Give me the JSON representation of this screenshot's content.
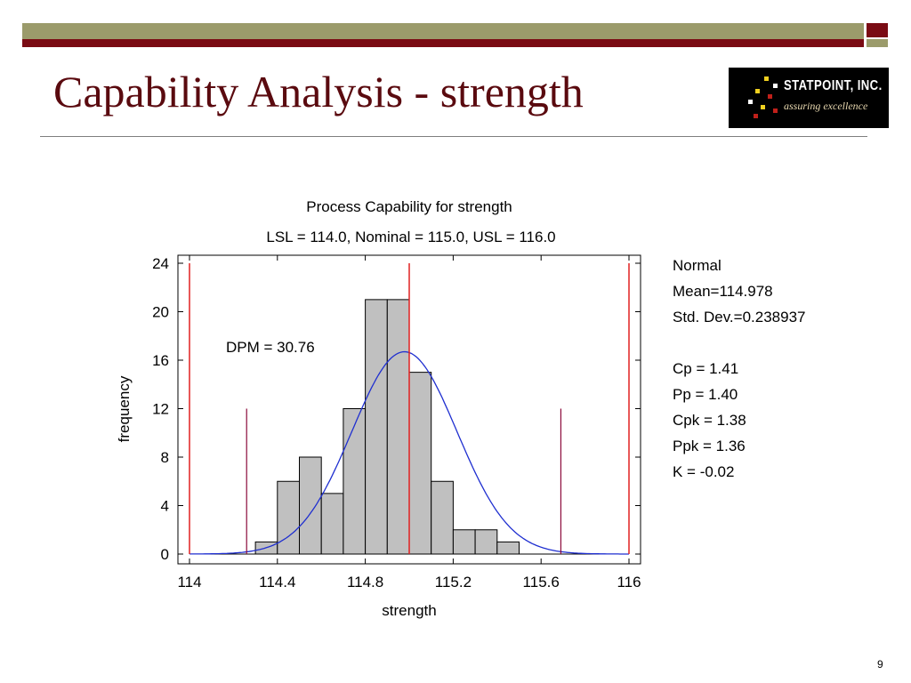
{
  "slide": {
    "title": "Capability Analysis - strength",
    "page_number": "9",
    "logo": {
      "name": "STATPOINT, INC.",
      "tagline": "assuring excellence"
    },
    "colors": {
      "title": "#5a0a0f",
      "band_olive": "#9b9b6b",
      "band_red": "#7a0b14"
    }
  },
  "chart_data": {
    "type": "bar",
    "title": "Process Capability for strength",
    "subtitle": "LSL = 114.0, Nominal = 115.0, USL = 116.0",
    "xlabel": "strength",
    "ylabel": "frequency",
    "xlim": [
      114,
      116
    ],
    "ylim": [
      0,
      24
    ],
    "x_ticks": [
      "114",
      "114.4",
      "114.8",
      "115.2",
      "115.6",
      "116"
    ],
    "y_ticks": [
      "0",
      "4",
      "8",
      "12",
      "16",
      "20",
      "24"
    ],
    "bin_width": 0.1,
    "bins": [
      {
        "x0": 114.3,
        "x1": 114.4,
        "count": 1
      },
      {
        "x0": 114.4,
        "x1": 114.5,
        "count": 6
      },
      {
        "x0": 114.5,
        "x1": 114.6,
        "count": 8
      },
      {
        "x0": 114.6,
        "x1": 114.7,
        "count": 5
      },
      {
        "x0": 114.7,
        "x1": 114.8,
        "count": 12
      },
      {
        "x0": 114.8,
        "x1": 114.9,
        "count": 21
      },
      {
        "x0": 114.9,
        "x1": 115.0,
        "count": 21
      },
      {
        "x0": 115.0,
        "x1": 115.1,
        "count": 15
      },
      {
        "x0": 115.1,
        "x1": 115.2,
        "count": 6
      },
      {
        "x0": 115.2,
        "x1": 115.3,
        "count": 2
      },
      {
        "x0": 115.3,
        "x1": 115.4,
        "count": 2
      },
      {
        "x0": 115.4,
        "x1": 115.5,
        "count": 1
      }
    ],
    "spec_limits": {
      "lsl": 114.0,
      "nominal": 115.0,
      "usl": 116.0
    },
    "sigma_limits": [
      114.26,
      115.69
    ],
    "normal_fit": {
      "mean": 114.978,
      "sd": 0.238937
    },
    "annotation": "DPM = 30.76",
    "stats": [
      "Normal",
      "Mean=114.978",
      "Std. Dev.=0.238937",
      "",
      "Cp = 1.41",
      "Pp = 1.40",
      "Cpk = 1.38",
      "Ppk = 1.36",
      "K = -0.02"
    ],
    "grid": false,
    "colors": {
      "bar_fill": "#c0c0c0",
      "bar_stroke": "#000000",
      "curve": "#1f2fd0",
      "spec_line": "#e02020",
      "sigma_line": "#8b0a3a"
    }
  }
}
